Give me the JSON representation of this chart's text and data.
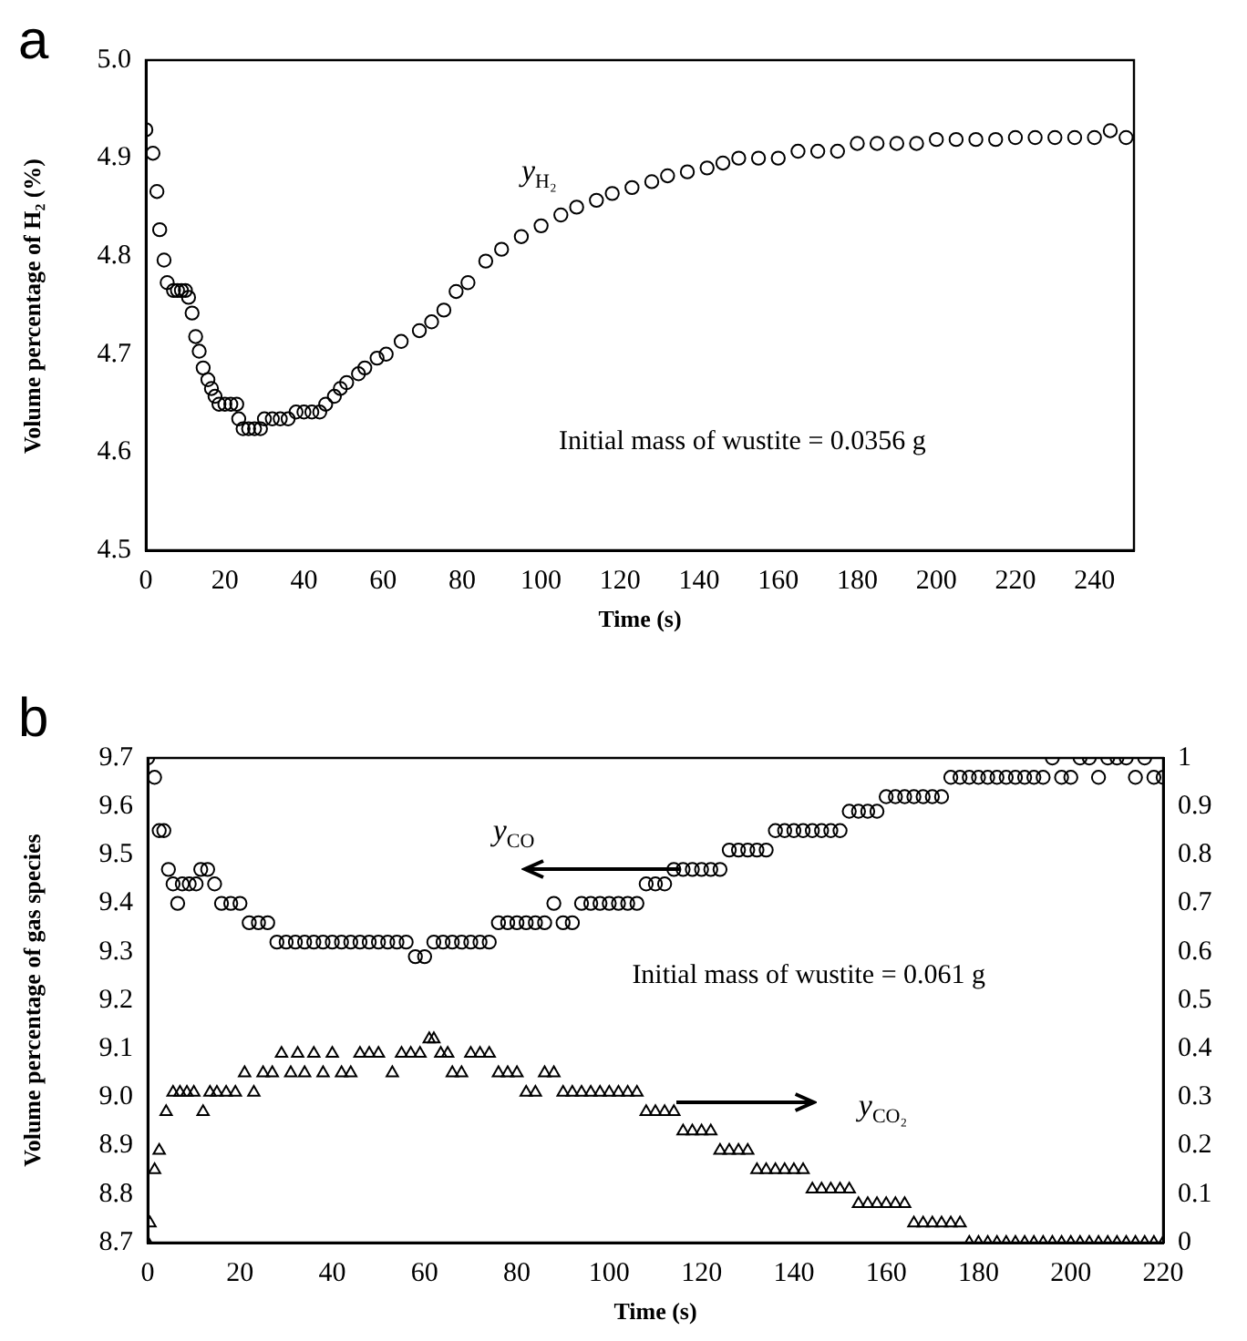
{
  "chart_data": [
    {
      "type": "scatter",
      "title": "a",
      "xlabel": "Time (s)",
      "ylabel": "Volume percentage of H₂ (%)",
      "marker": "circle",
      "xlim": [
        0,
        250
      ],
      "xticks": [
        0,
        20,
        40,
        60,
        80,
        100,
        120,
        140,
        160,
        180,
        200,
        220,
        240
      ],
      "ylim": [
        4.5,
        5.0
      ],
      "yticks": [
        4.5,
        4.6,
        4.7,
        4.8,
        4.9,
        {
          "value": 5,
          "label": "5.0"
        }
      ],
      "annotations": [
        "Initial mass of wustite =  0.0356 g"
      ],
      "series": [
        {
          "name": "y$_{H₂}$",
          "color": "#000000",
          "x": [
            0,
            1.8,
            2.8,
            3.5,
            4.6,
            5.4,
            7,
            8,
            9,
            10,
            10.8,
            11.7,
            12.6,
            13.5,
            14.5,
            15.7,
            16.6,
            17.5,
            18.5,
            20,
            21.5,
            23,
            23.5,
            24.6,
            26,
            27.5,
            29,
            30,
            32,
            34,
            36,
            38,
            40,
            42,
            44,
            45.5,
            47.7,
            49.2,
            50.8,
            53.8,
            55.4,
            58.5,
            60.8,
            64.6,
            69.2,
            72.3,
            75.4,
            78.5,
            81.5,
            86,
            90,
            95,
            100,
            105,
            109,
            114,
            118,
            123,
            128,
            132,
            137,
            142,
            146,
            150,
            155,
            160,
            165,
            170,
            175,
            180,
            185,
            190,
            195,
            200,
            205,
            210,
            215,
            220,
            225,
            230,
            235,
            240,
            244,
            248
          ],
          "values": [
            4.929,
            4.905,
            4.866,
            4.827,
            4.796,
            4.773,
            4.765,
            4.765,
            4.765,
            4.765,
            4.758,
            4.742,
            4.718,
            4.703,
            4.686,
            4.674,
            4.665,
            4.657,
            4.649,
            4.649,
            4.649,
            4.649,
            4.634,
            4.624,
            4.624,
            4.624,
            4.624,
            4.634,
            4.634,
            4.634,
            4.634,
            4.641,
            4.641,
            4.641,
            4.641,
            4.649,
            4.657,
            4.665,
            4.671,
            4.68,
            4.686,
            4.696,
            4.7,
            4.713,
            4.724,
            4.733,
            4.745,
            4.764,
            4.773,
            4.795,
            4.807,
            4.82,
            4.831,
            4.842,
            4.85,
            4.857,
            4.864,
            4.87,
            4.876,
            4.882,
            4.886,
            4.89,
            4.895,
            4.9,
            4.9,
            4.9,
            4.907,
            4.907,
            4.907,
            4.915,
            4.915,
            4.915,
            4.915,
            4.919,
            4.919,
            4.919,
            4.919,
            4.921,
            4.921,
            4.921,
            4.921,
            4.921,
            4.928,
            4.921
          ]
        }
      ]
    },
    {
      "type": "scatter",
      "title": "b",
      "xlabel": "Time (s)",
      "ylabel": "Volume percentage of gas species",
      "marker": "circle",
      "xlim": [
        0,
        220
      ],
      "xticks": [
        0,
        20,
        40,
        60,
        80,
        100,
        120,
        140,
        160,
        180,
        200,
        220
      ],
      "ylim": [
        8.7,
        9.7
      ],
      "yticks": [
        8.7,
        8.8,
        8.9,
        {
          "value": 9,
          "label": "9.0"
        },
        9.1,
        9.2,
        9.3,
        9.4,
        9.5,
        9.6,
        9.7
      ],
      "y2lim": [
        0,
        1
      ],
      "y2ticks": [
        0,
        0.1,
        0.2,
        0.3,
        0.4,
        0.5,
        0.6,
        0.7,
        0.8,
        0.9,
        1
      ],
      "annotations": [
        "Initial mass of wustite =  0.061 g"
      ],
      "series": [
        {
          "name": "y$_{CO}$",
          "color": "#000000",
          "x": [
            0,
            1.5,
            2.5,
            3.5,
            4.5,
            5.5,
            6.5,
            7.5,
            9,
            10.5,
            11.5,
            13,
            14.5,
            16,
            18,
            20,
            22,
            24,
            26,
            28,
            30,
            32,
            34,
            36,
            38,
            40,
            42,
            44,
            46,
            48,
            50,
            52,
            54,
            56,
            58,
            60,
            62,
            64,
            66,
            68,
            70,
            72,
            74,
            76,
            78,
            80,
            82,
            84,
            86,
            88,
            90,
            92,
            94,
            96,
            98,
            100,
            102,
            104,
            106,
            108,
            110,
            112,
            114,
            116,
            118,
            120,
            122,
            124,
            126,
            128,
            130,
            132,
            134,
            136,
            138,
            140,
            142,
            144,
            146,
            148,
            150,
            152,
            154,
            156,
            158,
            160,
            162,
            164,
            166,
            168,
            170,
            172,
            174,
            176,
            178,
            180,
            182,
            184,
            186,
            188,
            190,
            192,
            194,
            196,
            198,
            200,
            202,
            204,
            206,
            208,
            210,
            212,
            214,
            216,
            218,
            220
          ],
          "values": [
            9.7,
            9.66,
            9.55,
            9.55,
            9.47,
            9.44,
            9.4,
            9.44,
            9.44,
            9.44,
            9.47,
            9.47,
            9.44,
            9.4,
            9.4,
            9.4,
            9.36,
            9.36,
            9.36,
            9.32,
            9.32,
            9.32,
            9.32,
            9.32,
            9.32,
            9.32,
            9.32,
            9.32,
            9.32,
            9.32,
            9.32,
            9.32,
            9.32,
            9.32,
            9.29,
            9.29,
            9.32,
            9.32,
            9.32,
            9.32,
            9.32,
            9.32,
            9.32,
            9.36,
            9.36,
            9.36,
            9.36,
            9.36,
            9.36,
            9.4,
            9.36,
            9.36,
            9.4,
            9.4,
            9.4,
            9.4,
            9.4,
            9.4,
            9.4,
            9.44,
            9.44,
            9.44,
            9.47,
            9.47,
            9.47,
            9.47,
            9.47,
            9.47,
            9.51,
            9.51,
            9.51,
            9.51,
            9.51,
            9.55,
            9.55,
            9.55,
            9.55,
            9.55,
            9.55,
            9.55,
            9.55,
            9.59,
            9.59,
            9.59,
            9.59,
            9.62,
            9.62,
            9.62,
            9.62,
            9.62,
            9.62,
            9.62,
            9.66,
            9.66,
            9.66,
            9.66,
            9.66,
            9.66,
            9.66,
            9.66,
            9.66,
            9.66,
            9.66,
            9.7,
            9.66,
            9.66,
            9.7,
            9.7,
            9.66,
            9.7,
            9.7,
            9.7,
            9.66,
            9.7,
            9.66,
            9.66
          ]
        },
        {
          "name": "y$_{CO₂}$",
          "color": "#000000",
          "marker": "triangle",
          "axis": "y2",
          "x": [
            0,
            0.5,
            1.5,
            2.5,
            4,
            5.5,
            7,
            8.5,
            10,
            12,
            13.5,
            15,
            17,
            19,
            21,
            23,
            25,
            27,
            29,
            31,
            32.5,
            34,
            36,
            38,
            40,
            42,
            44,
            46,
            48,
            50,
            53,
            55,
            57,
            59,
            61,
            62,
            63.5,
            65,
            66,
            68,
            70,
            72,
            74,
            76,
            78,
            80,
            82,
            84,
            86,
            88,
            90,
            92,
            94,
            96,
            98,
            100,
            102,
            104,
            106,
            108,
            110,
            112,
            114,
            116,
            118,
            120,
            122,
            124,
            126,
            128,
            130,
            132,
            134,
            136,
            138,
            140,
            142,
            144,
            146,
            148,
            150,
            152,
            154,
            156,
            158,
            160,
            162,
            164,
            166,
            168,
            170,
            172,
            174,
            176,
            178,
            180,
            182,
            184,
            186,
            188,
            190,
            192,
            194,
            196,
            198,
            200,
            202,
            204,
            206,
            208,
            210,
            212,
            214,
            216,
            218,
            220
          ],
          "values": [
            0,
            0.04,
            0.15,
            0.19,
            0.27,
            0.31,
            0.31,
            0.31,
            0.31,
            0.27,
            0.31,
            0.31,
            0.31,
            0.31,
            0.35,
            0.31,
            0.35,
            0.35,
            0.39,
            0.35,
            0.39,
            0.35,
            0.39,
            0.35,
            0.39,
            0.35,
            0.35,
            0.39,
            0.39,
            0.39,
            0.35,
            0.39,
            0.39,
            0.39,
            0.42,
            0.42,
            0.39,
            0.39,
            0.35,
            0.35,
            0.39,
            0.39,
            0.39,
            0.35,
            0.35,
            0.35,
            0.31,
            0.31,
            0.35,
            0.35,
            0.31,
            0.31,
            0.31,
            0.31,
            0.31,
            0.31,
            0.31,
            0.31,
            0.31,
            0.27,
            0.27,
            0.27,
            0.27,
            0.23,
            0.23,
            0.23,
            0.23,
            0.19,
            0.19,
            0.19,
            0.19,
            0.15,
            0.15,
            0.15,
            0.15,
            0.15,
            0.15,
            0.11,
            0.11,
            0.11,
            0.11,
            0.11,
            0.08,
            0.08,
            0.08,
            0.08,
            0.08,
            0.08,
            0.04,
            0.04,
            0.04,
            0.04,
            0.04,
            0.04,
            0,
            0,
            0,
            0,
            0,
            0,
            0,
            0,
            0,
            0,
            0,
            0,
            0,
            0,
            0,
            0,
            0,
            0,
            0,
            0,
            0,
            0
          ]
        }
      ]
    }
  ]
}
